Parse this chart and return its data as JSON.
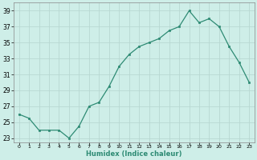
{
  "y_values": [
    26,
    25.5,
    24,
    24,
    24,
    23,
    24.5,
    27,
    27.5,
    29.5,
    32,
    33.5,
    34.5,
    35,
    35.5,
    36.5,
    37,
    39,
    37.5,
    38,
    37,
    34.5,
    32.5,
    30
  ],
  "line_color": "#2e8b74",
  "marker_color": "#2e8b74",
  "bg_color": "#ceeee8",
  "grid_color": "#b8d8d2",
  "xlabel": "Humidex (Indice chaleur)",
  "xlim": [
    -0.5,
    23.5
  ],
  "ylim": [
    22.5,
    40
  ],
  "yticks": [
    23,
    25,
    27,
    29,
    31,
    33,
    35,
    37,
    39
  ],
  "xtick_labels": [
    "0",
    "1",
    "2",
    "3",
    "4",
    "5",
    "6",
    "7",
    "8",
    "9",
    "10",
    "11",
    "12",
    "13",
    "14",
    "15",
    "16",
    "17",
    "18",
    "19",
    "20",
    "21",
    "22",
    "23"
  ]
}
